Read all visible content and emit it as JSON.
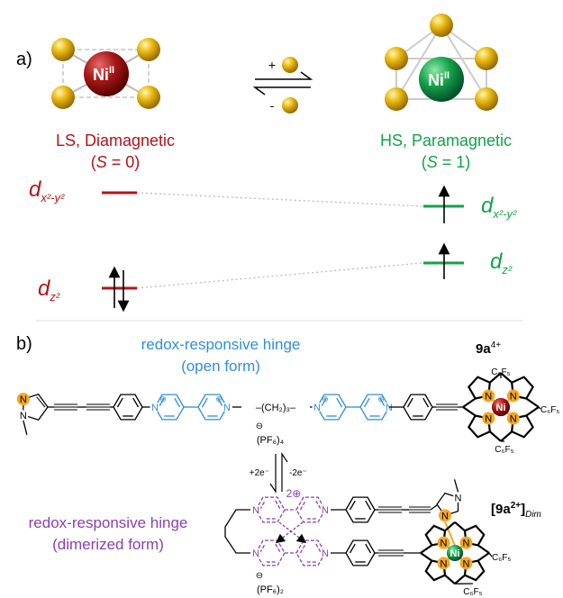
{
  "panel_a": {
    "label": "a)",
    "low_spin": {
      "metal": {
        "symbol": "Ni",
        "oxidation": "II"
      },
      "state": "LS, Diamagnetic",
      "spin": {
        "open": "(",
        "symbol": "S",
        "value": " = 0)"
      }
    },
    "high_spin": {
      "metal": {
        "symbol": "Ni",
        "oxidation": "II"
      },
      "state": "HS, Paramagnetic",
      "spin": {
        "open": "(",
        "symbol": "S",
        "value": " = 1)"
      }
    },
    "equilibrium": {
      "forward": "+",
      "reverse": "-"
    },
    "orbitals": {
      "dx2y2": {
        "letter": "d",
        "subscript": "x²-y²"
      },
      "dz2": {
        "letter": "d",
        "subscript": "z²"
      }
    }
  },
  "panel_b": {
    "label": "b)",
    "open_hinge": [
      "redox-responsive hinge",
      "(open form)"
    ],
    "open_compound": {
      "name": "9a",
      "charge": "4+"
    },
    "linker": "–(CH₂)₃–",
    "nitrogen": "N",
    "cation": "⊕",
    "anion": "⊖",
    "counterion_open": "(PF₆)₄",
    "aryl": "C₆F₅",
    "metal": "Ni",
    "reduction": "+2e⁻",
    "oxidation": "-2e⁻",
    "dimer_hinge": [
      "redox-responsive hinge",
      "(dimerized form)"
    ],
    "dimer_charge": "2⊕",
    "dimer_compound": {
      "open": "[",
      "name": "9a",
      "charge": "2+",
      "close": "]",
      "subscript": "Dim"
    },
    "counterion_dimer": "(PF₆)₂"
  }
}
